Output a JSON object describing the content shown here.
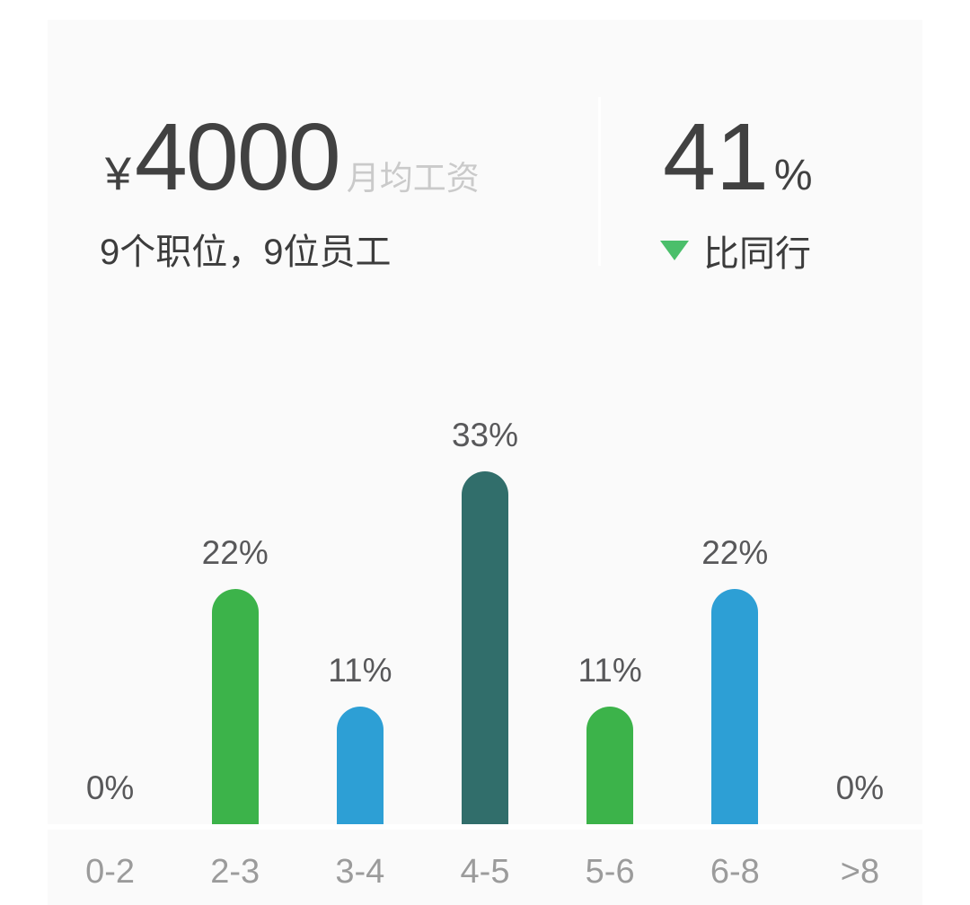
{
  "header": {
    "currency": "¥",
    "avg_salary": "4000",
    "avg_salary_label": "月均工资",
    "positions_summary": "9个职位，9位员工",
    "peer_percent": "41",
    "percent_sign": "%",
    "trend_icon": "triangle-down-icon",
    "trend_color": "#4bbf6b",
    "peer_label": "比同行"
  },
  "chart_data": {
    "type": "bar",
    "title": "",
    "categories": [
      "0-2",
      "2-3",
      "3-4",
      "4-5",
      "5-6",
      "6-8",
      ">8"
    ],
    "values": [
      0,
      22,
      11,
      33,
      11,
      22,
      0
    ],
    "unit": "%",
    "value_labels": [
      "0%",
      "22%",
      "11%",
      "33%",
      "11%",
      "22%",
      "0%"
    ],
    "bar_colors": [
      null,
      "#3cb34a",
      "#2d9fd5",
      "#316e6b",
      "#3cb34a",
      "#2d9fd5",
      null
    ],
    "xlabel": "",
    "ylabel": "",
    "ylim": [
      0,
      40
    ],
    "grid": false,
    "legend": false
  },
  "colors": {
    "page_bg": "#ffffff",
    "card_bg": "#fafafa",
    "primary_text": "#414141",
    "muted_label": "#cacaca",
    "value_label_text": "#58585a",
    "axis_label_text": "#9b9b9b",
    "green": "#3cb34a",
    "blue": "#2d9fd5",
    "teal": "#316e6b",
    "trend_green": "#4bbf6b",
    "baseline": "#ffffff"
  }
}
